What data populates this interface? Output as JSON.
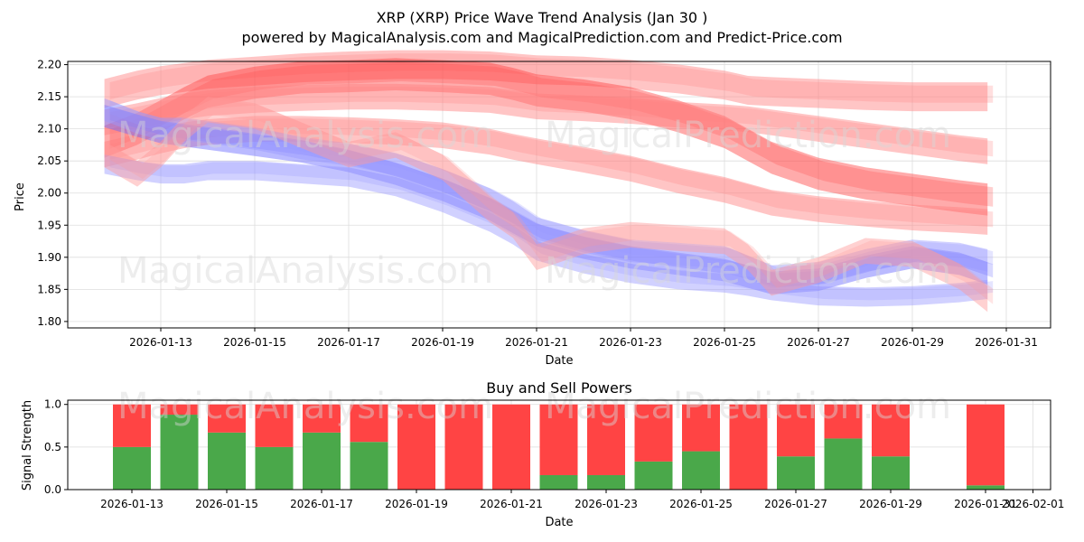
{
  "chart_data": [
    {
      "type": "area",
      "title_line1": "XRP (XRP) Price Wave Trend Analysis (Jan 30 )",
      "title_line2": "powered by MagicalAnalysis.com and MagicalPrediction.com and Predict-Price.com",
      "xlabel": "Date",
      "ylabel": "Price",
      "ylim": [
        1.79,
        2.205
      ],
      "yticks": [
        "1.80",
        "1.85",
        "1.90",
        "1.95",
        "2.00",
        "2.05",
        "2.10",
        "2.15",
        "2.20"
      ],
      "xticks": [
        "2026-01-13",
        "2026-01-15",
        "2026-01-17",
        "2026-01-19",
        "2026-01-21",
        "2026-01-23",
        "2026-01-25",
        "2026-01-27",
        "2026-01-29",
        "2026-01-31"
      ],
      "x_days": [
        11.8,
        12.5,
        13.0,
        13.5,
        14.0,
        15.0,
        16.0,
        17.0,
        18.0,
        19.0,
        20.0,
        20.5,
        21.0,
        22.0,
        23.0,
        24.0,
        25.0,
        25.5,
        26.0,
        27.0,
        28.0,
        29.0,
        30.0,
        30.6
      ],
      "series": [
        {
          "name": "red upper wave",
          "color": "#ff7f7f",
          "width": 0.045,
          "center": [
            2.155,
            2.168,
            2.175,
            2.18,
            2.185,
            2.19,
            2.195,
            2.198,
            2.2,
            2.2,
            2.198,
            2.195,
            2.192,
            2.19,
            2.185,
            2.178,
            2.168,
            2.16,
            2.158,
            2.155,
            2.152,
            2.15,
            2.15,
            2.15
          ]
        },
        {
          "name": "red main wave",
          "color": "#ff4444",
          "width": 0.05,
          "center": [
            2.08,
            2.1,
            2.12,
            2.14,
            2.158,
            2.172,
            2.18,
            2.182,
            2.185,
            2.182,
            2.178,
            2.17,
            2.16,
            2.152,
            2.14,
            2.12,
            2.095,
            2.075,
            2.055,
            2.03,
            2.015,
            2.005,
            1.995,
            1.99
          ]
        },
        {
          "name": "red mid wave",
          "color": "#ff7f7f",
          "width": 0.04,
          "center": [
            2.11,
            2.12,
            2.128,
            2.135,
            2.14,
            2.145,
            2.148,
            2.15,
            2.15,
            2.148,
            2.145,
            2.14,
            2.135,
            2.132,
            2.128,
            2.122,
            2.118,
            2.115,
            2.11,
            2.1,
            2.09,
            2.08,
            2.07,
            2.065
          ]
        },
        {
          "name": "red lower wave",
          "color": "#ff7f7f",
          "width": 0.04,
          "center": [
            2.06,
            2.072,
            2.082,
            2.09,
            2.095,
            2.1,
            2.1,
            2.098,
            2.095,
            2.09,
            2.08,
            2.072,
            2.065,
            2.052,
            2.038,
            2.02,
            2.005,
            1.995,
            1.985,
            1.975,
            1.968,
            1.962,
            1.958,
            1.955
          ]
        },
        {
          "name": "blue main wave",
          "color": "#6666ff",
          "width": 0.035,
          "center": [
            2.12,
            2.105,
            2.095,
            2.09,
            2.085,
            2.075,
            2.065,
            2.05,
            2.03,
            2.005,
            1.975,
            1.955,
            1.935,
            1.915,
            1.9,
            1.89,
            1.88,
            1.87,
            1.86,
            1.865,
            1.885,
            1.9,
            1.89,
            1.875
          ]
        },
        {
          "name": "blue upper wave",
          "color": "#9999ff",
          "width": 0.035,
          "center": [
            2.13,
            2.11,
            2.1,
            2.1,
            2.095,
            2.085,
            2.07,
            2.06,
            2.045,
            2.02,
            1.99,
            1.97,
            1.945,
            1.925,
            1.91,
            1.905,
            1.9,
            1.885,
            1.87,
            1.875,
            1.895,
            1.91,
            1.905,
            1.895
          ]
        },
        {
          "name": "blue lower wave",
          "color": "#9999ff",
          "width": 0.03,
          "center": [
            2.045,
            2.035,
            2.03,
            2.03,
            2.035,
            2.035,
            2.03,
            2.025,
            2.01,
            1.985,
            1.955,
            1.935,
            1.91,
            1.89,
            1.875,
            1.865,
            1.86,
            1.855,
            1.848,
            1.84,
            1.838,
            1.84,
            1.845,
            1.85
          ]
        },
        {
          "name": "pink noise wave",
          "color": "#ff9999",
          "width": 0.04,
          "center": [
            2.06,
            2.03,
            2.06,
            2.1,
            2.13,
            2.12,
            2.09,
            2.06,
            2.075,
            2.04,
            1.975,
            1.95,
            1.9,
            1.925,
            1.935,
            1.93,
            1.925,
            1.9,
            1.86,
            1.88,
            1.91,
            1.905,
            1.87,
            1.835
          ]
        }
      ]
    },
    {
      "type": "bar",
      "title": "Buy and Sell Powers",
      "xlabel": "Date",
      "ylabel": "Signal Strength",
      "ylim": [
        0,
        1.05
      ],
      "yticks": [
        "0.0",
        "0.5",
        "1.0"
      ],
      "xticks": [
        "2026-01-13",
        "2026-01-15",
        "2026-01-17",
        "2026-01-19",
        "2026-01-21",
        "2026-01-23",
        "2026-01-25",
        "2026-01-27",
        "2026-01-29",
        "2026-01-31",
        "2026-02-01"
      ],
      "categories": [
        "2026-01-13",
        "2026-01-14",
        "2026-01-15",
        "2026-01-16",
        "2026-01-17",
        "2026-01-18",
        "2026-01-19",
        "2026-01-20",
        "2026-01-21",
        "2026-01-22",
        "2026-01-23",
        "2026-01-24",
        "2026-01-25",
        "2026-01-26",
        "2026-01-27",
        "2026-01-28",
        "2026-01-29",
        "2026-01-31"
      ],
      "series": [
        {
          "name": "Buy",
          "color": "#4aa84a",
          "values": [
            0.5,
            0.88,
            0.67,
            0.5,
            0.67,
            0.56,
            0.0,
            0.0,
            0.0,
            0.17,
            0.17,
            0.33,
            0.45,
            0.0,
            0.39,
            0.6,
            0.39,
            0.05
          ]
        },
        {
          "name": "Sell",
          "color": "#ff4444",
          "values": [
            0.5,
            0.12,
            0.33,
            0.5,
            0.33,
            0.44,
            1.0,
            1.0,
            1.0,
            0.83,
            0.83,
            0.67,
            0.55,
            1.0,
            0.61,
            0.4,
            0.61,
            0.95
          ]
        }
      ]
    }
  ],
  "watermarks": [
    "MagicalAnalysis.com",
    "MagicalPrediction.com"
  ]
}
